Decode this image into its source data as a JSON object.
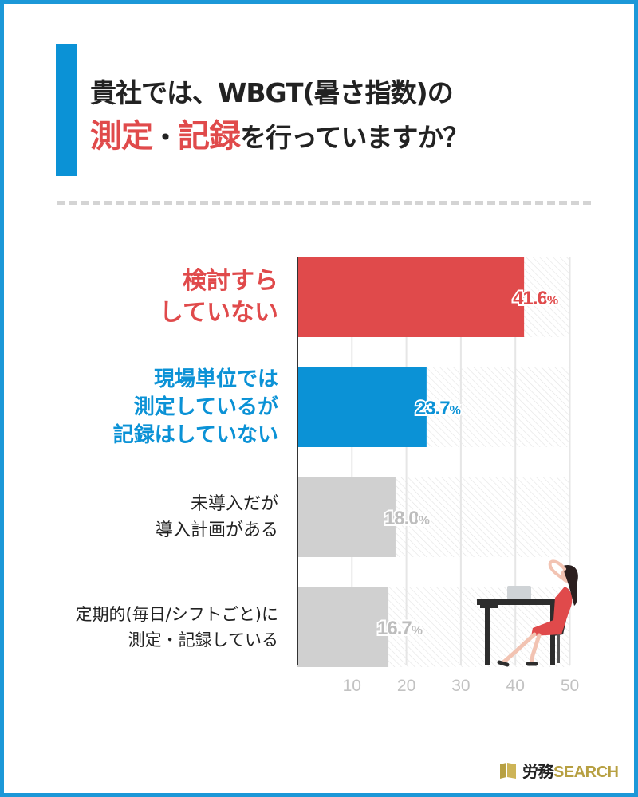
{
  "title": {
    "line1": "貴社では、WBGT(暑さ指数)の",
    "hl1": "測定",
    "sep": "・",
    "hl2": "記録",
    "rest": "を行っていますか？"
  },
  "colors": {
    "border": "#1c98d8",
    "accent_red": "#e04a4b",
    "accent_blue": "#0b92d6",
    "gray_bar": "#d0d0d0",
    "gold": "#b7a042"
  },
  "chart_data": {
    "type": "bar",
    "orientation": "horizontal",
    "categories": [
      "検討すらしていない",
      "現場単位では測定しているが記録はしていない",
      "未導入だが導入計画がある",
      "定期的(毎日/シフトごと)に測定・記録している"
    ],
    "category_lines": [
      [
        "検討すら",
        "していない"
      ],
      [
        "現場単位では",
        "測定しているが",
        "記録はしていない"
      ],
      [
        "未導入だが",
        "導入計画がある"
      ],
      [
        "定期的(毎日/シフトごと)に",
        "測定・記録している"
      ]
    ],
    "values": [
      41.6,
      23.7,
      18.0,
      16.7
    ],
    "value_labels": [
      {
        "num": "41.6",
        "unit": "%"
      },
      {
        "num": "23.7",
        "unit": "%"
      },
      {
        "num": "18.0",
        "unit": "%"
      },
      {
        "num": "16.7",
        "unit": "%"
      }
    ],
    "bar_colors": [
      "#e04a4b",
      "#0b92d6",
      "#d0d0d0",
      "#d0d0d0"
    ],
    "label_colors": [
      "#e04a4b",
      "#0b92d6",
      "#222222",
      "#222222"
    ],
    "xlim": [
      0,
      50
    ],
    "xticks": [
      10,
      20,
      30,
      40,
      50
    ],
    "grid": true
  },
  "footer": {
    "brand_jp": "労務",
    "brand_en": "SEARCH"
  }
}
